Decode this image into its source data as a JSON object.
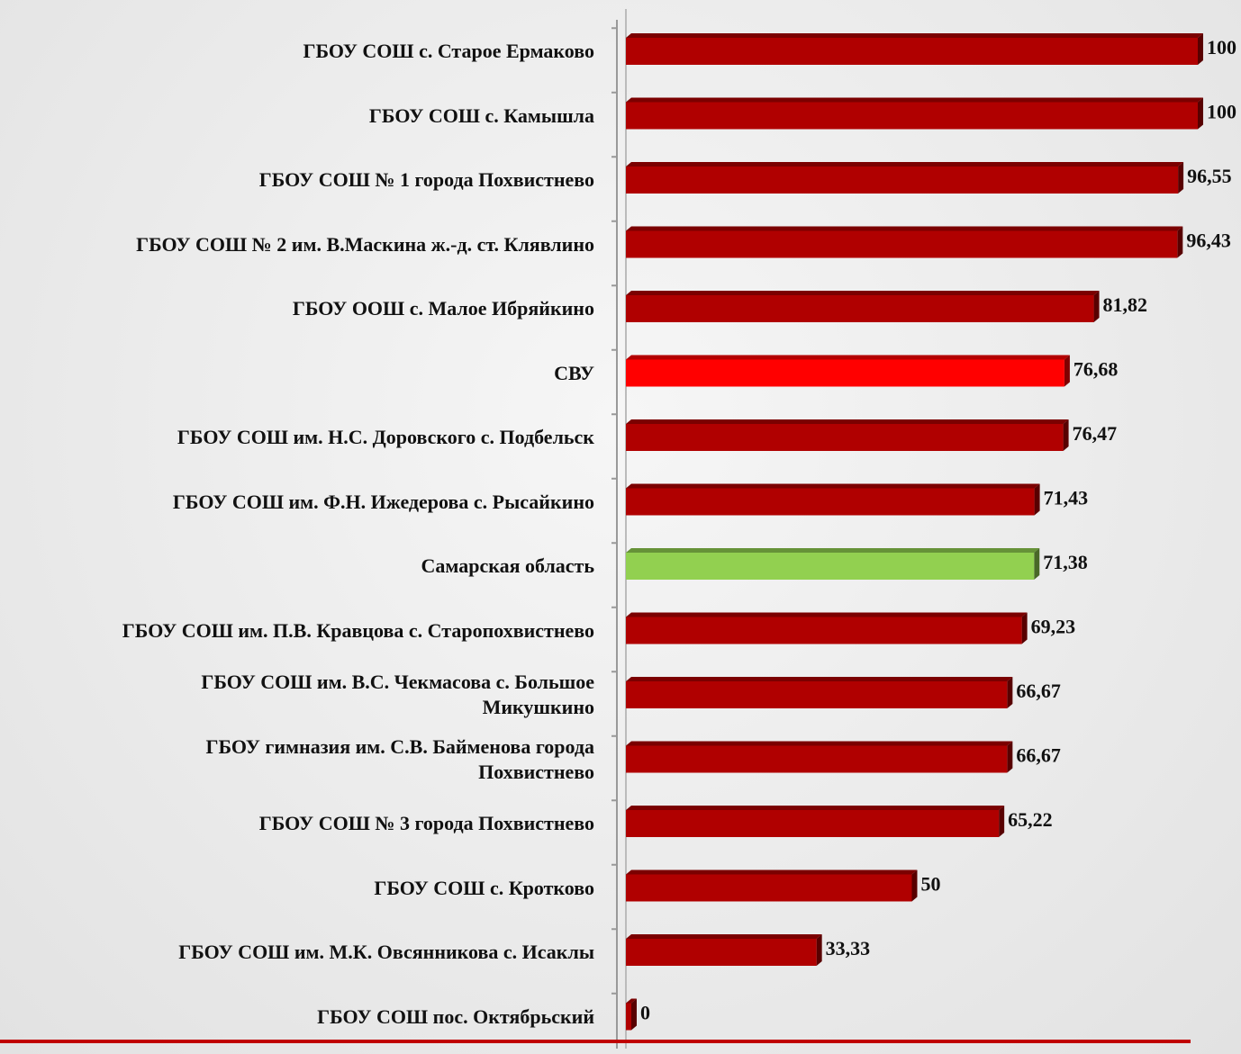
{
  "chart_data": {
    "type": "bar",
    "orientation": "horizontal",
    "categories": [
      "ГБОУ СОШ с. Старое Ермаково",
      "ГБОУ СОШ с. Камышла",
      "ГБОУ СОШ  № 1 города Похвистнево",
      "ГБОУ СОШ  № 2 им. В.Маскина ж.-д. ст. Клявлино",
      "ГБОУ ООШ с. Малое Ибряйкино",
      "СВУ",
      "ГБОУ СОШ им. Н.С.  Доровского с. Подбельск",
      "ГБОУ СОШ им. Ф.Н.  Ижедерова с. Рысайкино",
      "Самарская область",
      "ГБОУ СОШ им. П.В.  Кравцова с. Старопохвистнево",
      "ГБОУ СОШ им. В.С. Чекмасова с. Большое\nМикушкино",
      "ГБОУ  гимназия им. С.В. Байменова города\nПохвистнево",
      "ГБОУ СОШ  № 3 города Похвистнево",
      "ГБОУ СОШ с. Кротково",
      "ГБОУ СОШ им. М.К. Овсянникова с. Исаклы",
      "ГБОУ СОШ пос. Октябрьский"
    ],
    "values": [
      100,
      100,
      96.55,
      96.43,
      81.82,
      76.68,
      76.47,
      71.43,
      71.38,
      69.23,
      66.67,
      66.67,
      65.22,
      50,
      33.33,
      0
    ],
    "value_labels": [
      "100",
      "100",
      "96,55",
      "96,43",
      "81,82",
      "76,68",
      "76,47",
      "71,43",
      "71,38",
      "69,23",
      "66,67",
      "66,67",
      "65,22",
      "50",
      "33,33",
      "0"
    ],
    "colors": [
      "#b00000",
      "#b00000",
      "#b00000",
      "#b00000",
      "#b00000",
      "#ff0000",
      "#b00000",
      "#b00000",
      "#92d050",
      "#b00000",
      "#b00000",
      "#b00000",
      "#b00000",
      "#b00000",
      "#b00000",
      "#b00000"
    ],
    "xlim": [
      0,
      100
    ]
  }
}
